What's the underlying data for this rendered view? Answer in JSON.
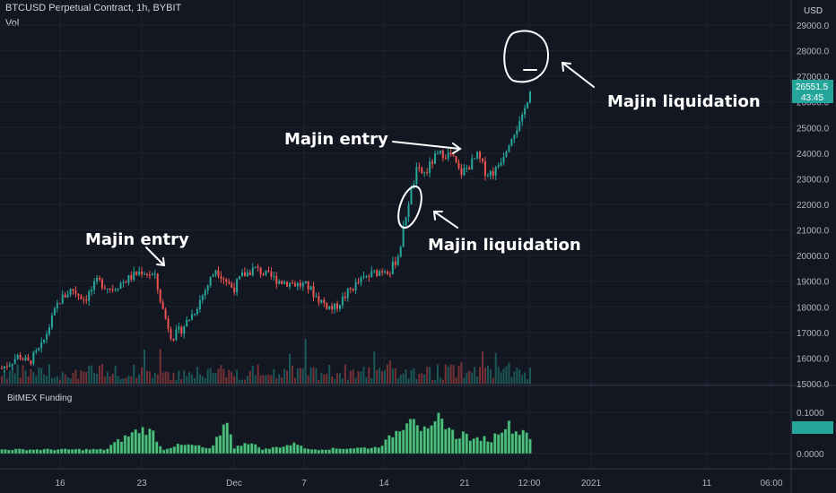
{
  "header": {
    "title": "BTCUSD Perpetual Contract, 1h, BYBIT",
    "vol_label": "Vol",
    "indicator_label": "BitMEX Funding"
  },
  "price_axis": {
    "currency": "USD",
    "last_price": "26551.5",
    "countdown": "43:45"
  },
  "annotations": {
    "entry_1": "Majin entry",
    "entry_2": "Majin entry",
    "liq_1": "Majin liquidation",
    "liq_2": "Majin liquidation"
  },
  "colors": {
    "background": "#131722",
    "up": "#26a69a",
    "down": "#ef5350",
    "funding": "#4fbf7f",
    "last_price_badge": "#26a69a",
    "annotation": "#ffffff"
  },
  "chart_data": [
    {
      "type": "candlestick",
      "title": "BTCUSD Perpetual Contract, 1h, BYBIT",
      "x_ticks": [
        "16",
        "23",
        "Dec",
        "7",
        "14",
        "21",
        "12:00",
        "2021",
        "11",
        "06:00"
      ],
      "y_ticks": [
        15000,
        16000,
        17000,
        18000,
        19000,
        20000,
        21000,
        22000,
        23000,
        24000,
        25000,
        26000,
        27000,
        28000,
        29000
      ],
      "ylim": [
        15000,
        29500
      ],
      "grid": true,
      "price_path": [
        {
          "t": 0,
          "v": 15600
        },
        {
          "t": 4,
          "v": 16100
        },
        {
          "t": 6,
          "v": 15800
        },
        {
          "t": 9,
          "v": 16400
        },
        {
          "t": 11,
          "v": 17300
        },
        {
          "t": 13,
          "v": 18200
        },
        {
          "t": 16,
          "v": 18700
        },
        {
          "t": 19,
          "v": 18300
        },
        {
          "t": 22,
          "v": 19000
        },
        {
          "t": 25,
          "v": 18700
        },
        {
          "t": 28,
          "v": 19000
        },
        {
          "t": 32,
          "v": 19400
        },
        {
          "t": 35,
          "v": 19200
        },
        {
          "t": 37,
          "v": 17800
        },
        {
          "t": 39,
          "v": 16800
        },
        {
          "t": 41,
          "v": 17100
        },
        {
          "t": 44,
          "v": 17800
        },
        {
          "t": 47,
          "v": 18800
        },
        {
          "t": 49,
          "v": 19500
        },
        {
          "t": 51,
          "v": 19100
        },
        {
          "t": 53,
          "v": 18700
        },
        {
          "t": 55,
          "v": 19200
        },
        {
          "t": 58,
          "v": 19500
        },
        {
          "t": 61,
          "v": 19200
        },
        {
          "t": 64,
          "v": 19000
        },
        {
          "t": 67,
          "v": 18900
        },
        {
          "t": 70,
          "v": 18800
        },
        {
          "t": 72,
          "v": 18400
        },
        {
          "t": 74,
          "v": 18100
        },
        {
          "t": 76,
          "v": 17900
        },
        {
          "t": 78,
          "v": 18300
        },
        {
          "t": 80,
          "v": 18700
        },
        {
          "t": 82,
          "v": 19000
        },
        {
          "t": 85,
          "v": 19300
        },
        {
          "t": 88,
          "v": 19500
        },
        {
          "t": 89,
          "v": 19400
        },
        {
          "t": 91,
          "v": 20100
        },
        {
          "t": 93,
          "v": 22000
        },
        {
          "t": 95,
          "v": 23300
        },
        {
          "t": 97,
          "v": 23200
        },
        {
          "t": 99,
          "v": 23800
        },
        {
          "t": 101,
          "v": 24000
        },
        {
          "t": 103,
          "v": 23900
        },
        {
          "t": 105,
          "v": 23200
        },
        {
          "t": 107,
          "v": 23500
        },
        {
          "t": 109,
          "v": 23900
        },
        {
          "t": 111,
          "v": 23200
        },
        {
          "t": 113,
          "v": 23300
        },
        {
          "t": 115,
          "v": 24000
        },
        {
          "t": 117,
          "v": 24800
        },
        {
          "t": 119,
          "v": 25200
        },
        {
          "t": 121,
          "v": 26551.5
        }
      ]
    },
    {
      "type": "bar",
      "title": "BitMEX Funding",
      "y_ticks": [
        0.0,
        0.1
      ],
      "ylim": [
        -0.02,
        0.13
      ],
      "funding_profile": [
        {
          "t": 0,
          "v": 0.01
        },
        {
          "t": 24,
          "v": 0.01
        },
        {
          "t": 25,
          "v": 0.02
        },
        {
          "t": 30,
          "v": 0.05
        },
        {
          "t": 32,
          "v": 0.06
        },
        {
          "t": 35,
          "v": 0.05
        },
        {
          "t": 36,
          "v": 0.02
        },
        {
          "t": 37,
          "v": 0.01
        },
        {
          "t": 40,
          "v": 0.02
        },
        {
          "t": 44,
          "v": 0.02
        },
        {
          "t": 48,
          "v": 0.01
        },
        {
          "t": 52,
          "v": 0.09
        },
        {
          "t": 53,
          "v": 0.01
        },
        {
          "t": 56,
          "v": 0.03
        },
        {
          "t": 60,
          "v": 0.01
        },
        {
          "t": 68,
          "v": 0.025
        },
        {
          "t": 70,
          "v": 0.01
        },
        {
          "t": 86,
          "v": 0.015
        },
        {
          "t": 88,
          "v": 0.03
        },
        {
          "t": 90,
          "v": 0.05
        },
        {
          "t": 92,
          "v": 0.07
        },
        {
          "t": 94,
          "v": 0.105
        },
        {
          "t": 96,
          "v": 0.06
        },
        {
          "t": 98,
          "v": 0.05
        },
        {
          "t": 100,
          "v": 0.085
        },
        {
          "t": 102,
          "v": 0.07
        },
        {
          "t": 104,
          "v": 0.04
        },
        {
          "t": 106,
          "v": 0.05
        },
        {
          "t": 108,
          "v": 0.03
        },
        {
          "t": 110,
          "v": 0.04
        },
        {
          "t": 112,
          "v": 0.03
        },
        {
          "t": 114,
          "v": 0.06
        },
        {
          "t": 116,
          "v": 0.07
        },
        {
          "t": 118,
          "v": 0.05
        },
        {
          "t": 120,
          "v": 0.06
        },
        {
          "t": 121,
          "v": 0.04
        }
      ]
    }
  ]
}
